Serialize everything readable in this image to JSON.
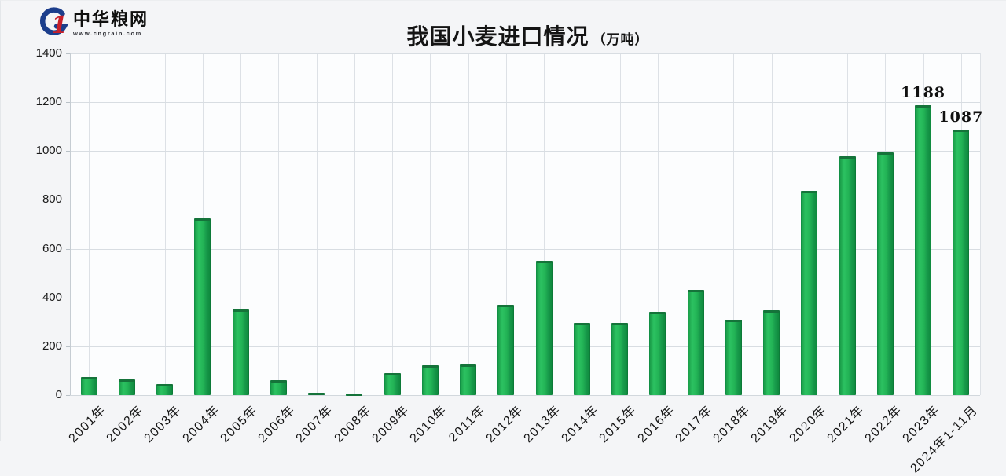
{
  "page": {
    "background": "#f4f5f7"
  },
  "header": {
    "logo": {
      "name": "中华粮网",
      "url_text": "www.cngrain.com",
      "icon": "cngrain-logo-icon",
      "brand_blue": "#1c3e8c",
      "brand_red": "#c8202a"
    },
    "title": "我国小麦进口情况",
    "title_unit": "（万吨）"
  },
  "chart_data": {
    "type": "bar",
    "title": "我国小麦进口情况",
    "unit": "万吨",
    "categories": [
      "2001年",
      "2002年",
      "2003年",
      "2004年",
      "2005年",
      "2006年",
      "2007年",
      "2008年",
      "2009年",
      "2010年",
      "2011年",
      "2012年",
      "2013年",
      "2014年",
      "2015年",
      "2016年",
      "2017年",
      "2018年",
      "2019年",
      "2020年",
      "2021年",
      "2022年",
      "2023年",
      "2024年1-11月"
    ],
    "values": [
      74,
      63,
      45,
      723,
      352,
      60,
      10,
      4,
      90,
      123,
      126,
      370,
      550,
      297,
      297,
      340,
      430,
      310,
      349,
      838,
      977,
      996,
      1188,
      1087
    ],
    "bar_value_labels": {
      "2023年": "1188",
      "2024年1-11月": "1087"
    },
    "ylim": [
      0,
      1400
    ],
    "ytick_step": 200,
    "yticks": [
      0,
      200,
      400,
      600,
      800,
      1000,
      1200,
      1400
    ],
    "grid": true,
    "legend": "none",
    "bar_color": "#23b456",
    "bar_color_dark": "#0f8a3e",
    "bar_top_color": "#15733a",
    "grid_color": "#d8dde2"
  }
}
